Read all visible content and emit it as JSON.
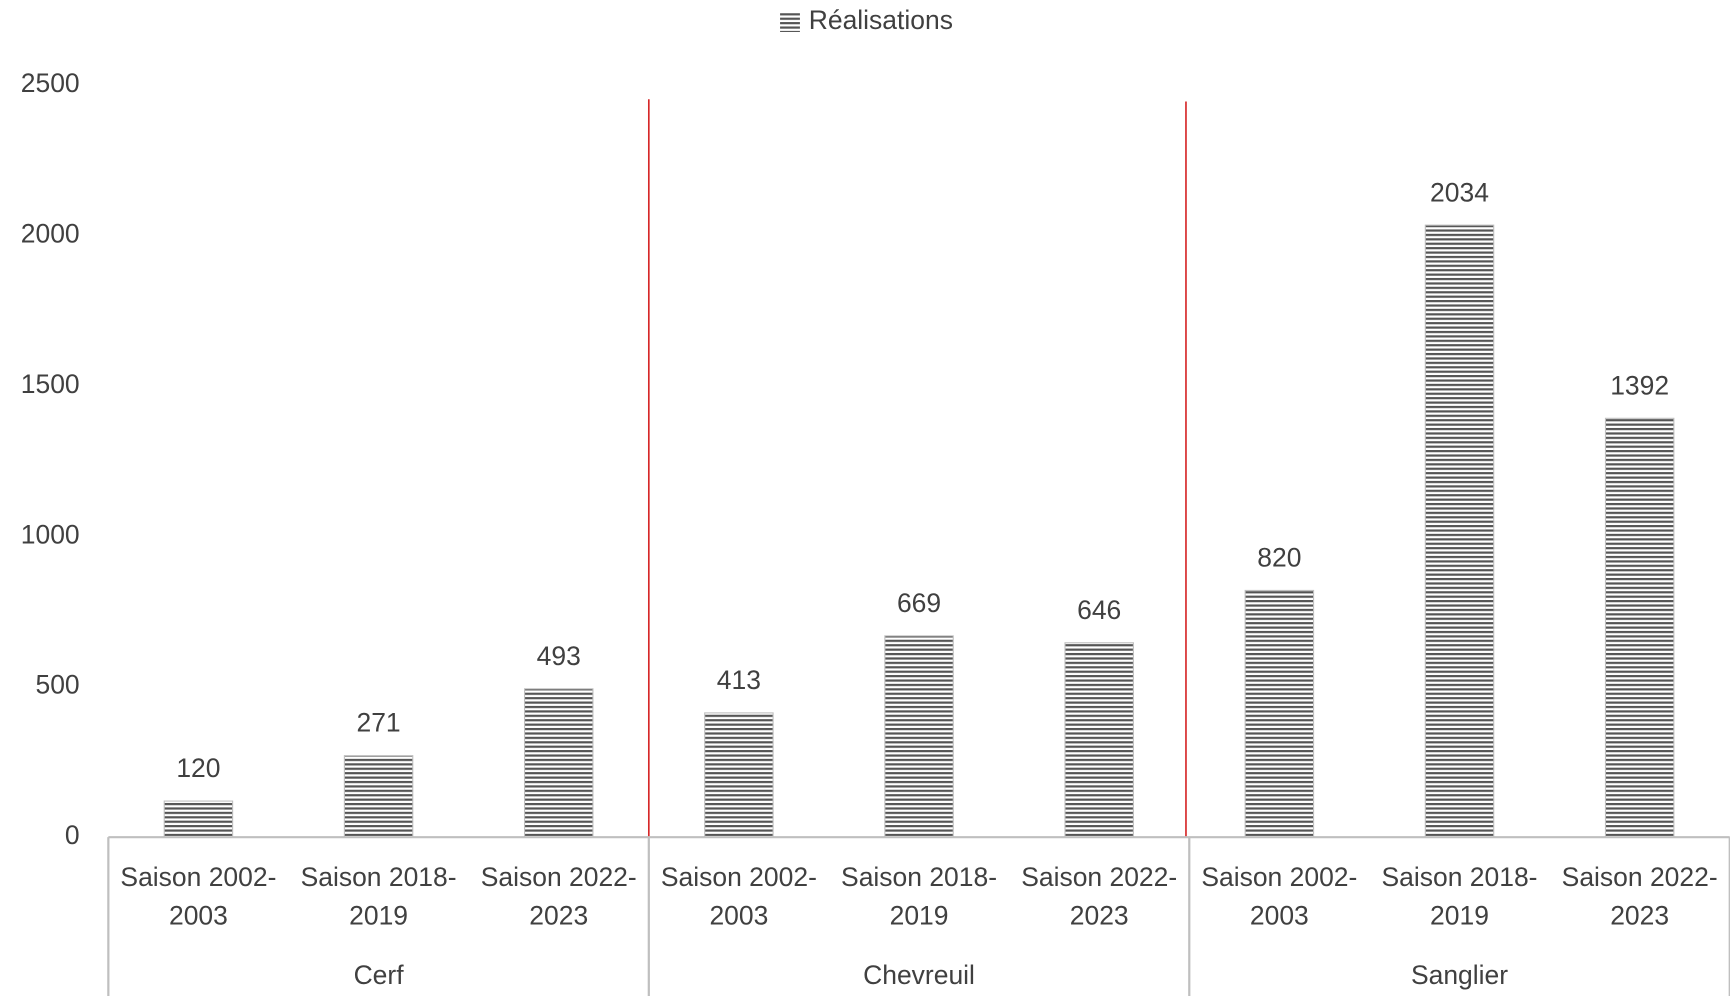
{
  "chart_data": {
    "type": "bar",
    "series": [
      {
        "name": "Réalisations",
        "color": "#555555",
        "values": [
          120,
          271,
          493,
          413,
          669,
          646,
          820,
          2034,
          1392
        ]
      }
    ],
    "categories": [
      "Saison 2002-2003",
      "Saison 2018-2019",
      "Saison 2022-2023",
      "Saison 2002-2003",
      "Saison 2018-2019",
      "Saison 2022-2023",
      "Saison 2002-2003",
      "Saison 2018-2019",
      "Saison 2022-2023"
    ],
    "groups": [
      "Cerf",
      "Chevreuil",
      "Sanglier"
    ],
    "ylim": [
      0,
      2500
    ],
    "yticks": [
      0,
      500,
      1000,
      1500,
      2000,
      2500
    ],
    "grid": false,
    "legend": "top"
  }
}
